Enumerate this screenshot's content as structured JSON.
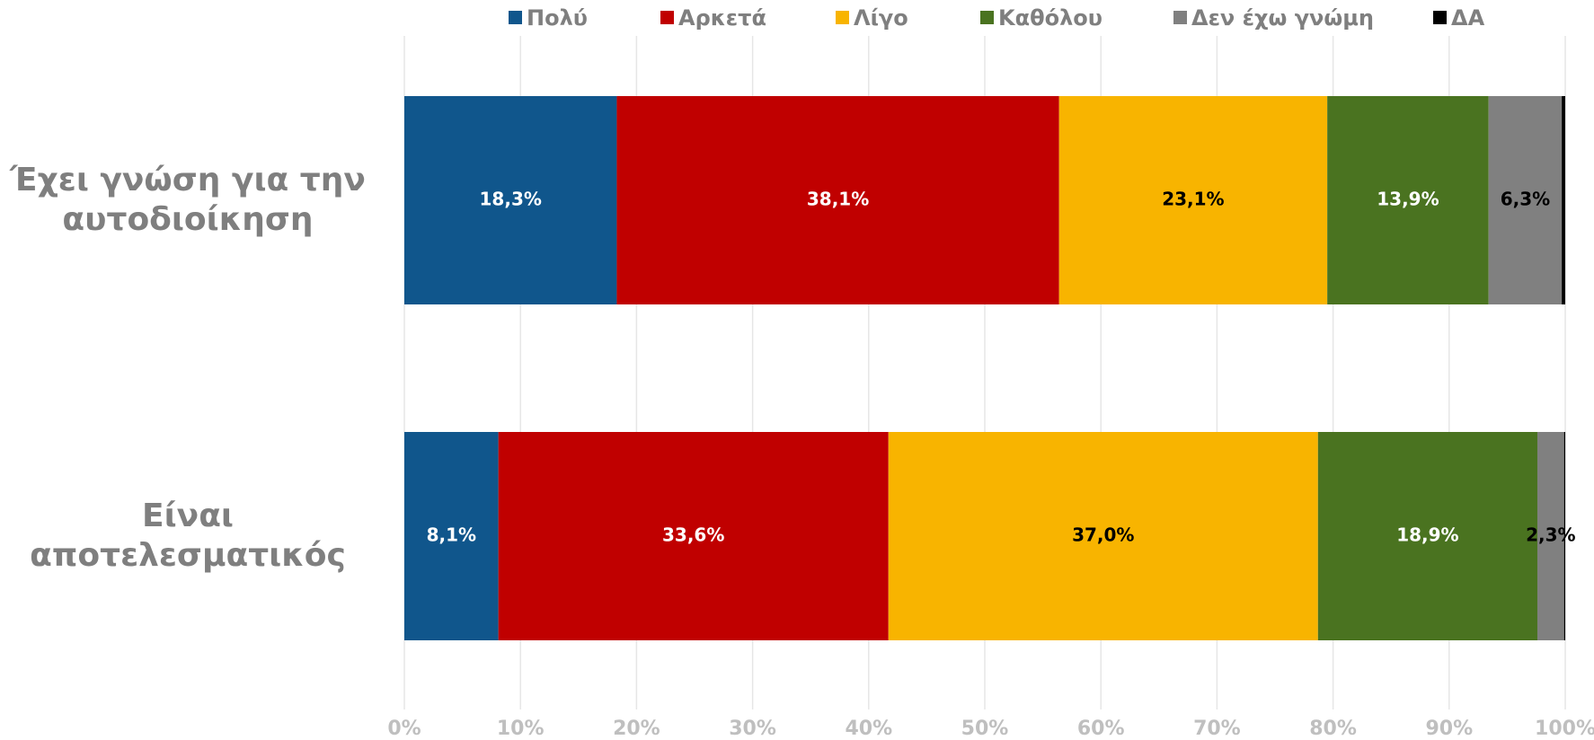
{
  "chart_data": {
    "type": "stacked_barh",
    "categories": [
      "Έχει γνώση για την αυτοδιοίκηση",
      "Είναι αποτελεσματικός"
    ],
    "series": [
      {
        "name": "Πολύ",
        "color": "#10568c",
        "label_color": "#ffffff",
        "values": [
          18.3,
          8.1
        ],
        "value_labels": [
          "18,3%",
          "8,1%"
        ]
      },
      {
        "name": "Αρκετά",
        "color": "#c00000",
        "label_color": "#ffffff",
        "values": [
          38.1,
          33.6
        ],
        "value_labels": [
          "38,1%",
          "33,6%"
        ]
      },
      {
        "name": "Λίγο",
        "color": "#f8b400",
        "label_color": "#000000",
        "values": [
          23.1,
          37.0
        ],
        "value_labels": [
          "23,1%",
          "37,0%"
        ]
      },
      {
        "name": "Καθόλου",
        "color": "#4a7320",
        "label_color": "#ffffff",
        "values": [
          13.9,
          18.9
        ],
        "value_labels": [
          "13,9%",
          "18,9%"
        ]
      },
      {
        "name": "Δεν έχω γνώμη",
        "color": "#808080",
        "label_color": "#000000",
        "values": [
          6.3,
          2.3
        ],
        "value_labels": [
          "6,3%",
          "2,3%"
        ]
      },
      {
        "name": "ΔΑ",
        "color": "#000000",
        "values": [
          0.3,
          0.1
        ]
      }
    ],
    "xlim": [
      0,
      100
    ],
    "xticks": [
      {
        "value": 0,
        "label": "0%"
      },
      {
        "value": 10,
        "label": "10%"
      },
      {
        "value": 20,
        "label": "20%"
      },
      {
        "value": 30,
        "label": "30%"
      },
      {
        "value": 40,
        "label": "40%"
      },
      {
        "value": 50,
        "label": "50%"
      },
      {
        "value": 60,
        "label": "60%"
      },
      {
        "value": 70,
        "label": "70%"
      },
      {
        "value": 80,
        "label": "80%"
      },
      {
        "value": 90,
        "label": "90%"
      },
      {
        "value": 100,
        "label": "100%"
      }
    ],
    "grid": true,
    "legend": "top"
  }
}
